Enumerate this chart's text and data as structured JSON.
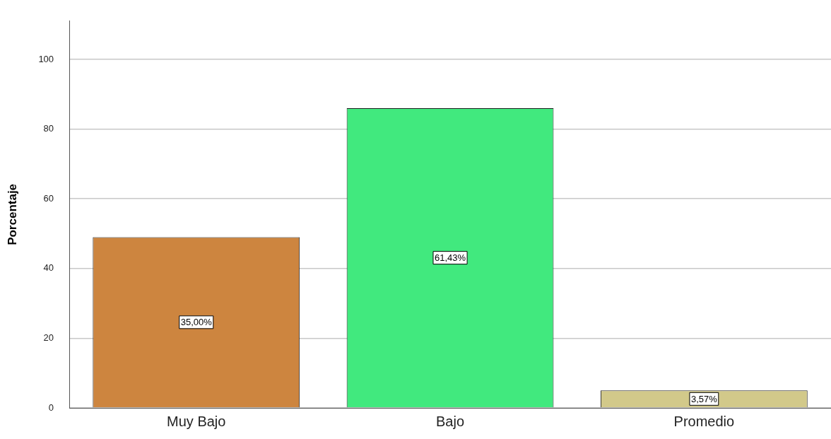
{
  "chart_data": {
    "type": "bar",
    "ylabel": "Porcentaje",
    "categories": [
      "Muy Bajo",
      "Bajo",
      "Promedio"
    ],
    "values": [
      49,
      86,
      5
    ],
    "colors": [
      "#cd853f",
      "#41e97e",
      "#d2c98a"
    ],
    "annotations": [
      "35,00%",
      "61,43%",
      "3,57%"
    ],
    "ylim": [
      0,
      111
    ],
    "yticks": [
      0,
      20,
      40,
      60,
      80,
      100
    ],
    "grid": "y",
    "legend": false
  }
}
